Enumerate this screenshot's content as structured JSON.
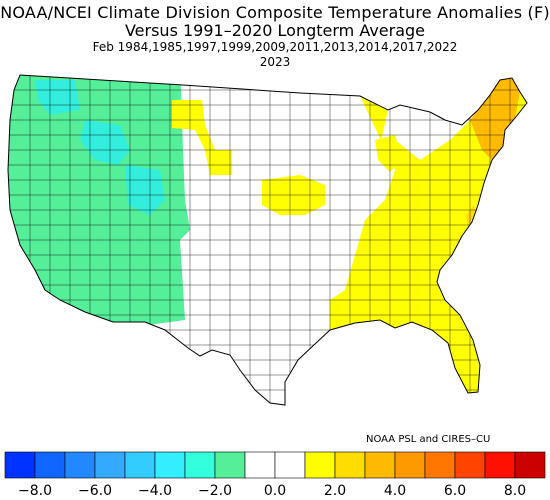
{
  "title": {
    "line1": "NOAA/NCEI Climate Division Composite Temperature Anomalies (F)",
    "line2": "Versus 1991–2020 Longterm Average",
    "line3": "Feb  1984,1985,1997,1999,2009,2011,2013,2014,2017,2022",
    "line4": "2023"
  },
  "credit": "NOAA PSL and CIRES–CU",
  "colorbar": {
    "colors": [
      "#0033ff",
      "#1166ff",
      "#2288ff",
      "#33aaff",
      "#33ccff",
      "#33eeff",
      "#33ffdd",
      "#55ee99",
      "#ffffff",
      "#ffffff",
      "#ffff00",
      "#ffdd00",
      "#ffbb00",
      "#ff9900",
      "#ff7700",
      "#ff4400",
      "#ff1100",
      "#cc0000"
    ],
    "tick_labels": [
      "−8.0",
      "−6.0",
      "−4.0",
      "−2.0",
      "0.0",
      "2.0",
      "4.0",
      "6.0",
      "8.0"
    ]
  },
  "map": {
    "regions": [
      {
        "name": "west-green",
        "color": "#55ee99"
      },
      {
        "name": "central-idaho-cyan",
        "color": "#33eedd"
      },
      {
        "name": "southeast-yellow",
        "color": "#ffff00"
      },
      {
        "name": "great-lakes-yellow",
        "color": "#ffff00"
      },
      {
        "name": "northern-plains-yellow",
        "color": "#ffff00"
      },
      {
        "name": "new-england-orange",
        "color": "#ffbb00"
      },
      {
        "name": "mid-atlantic-gold",
        "color": "#ffdd00"
      },
      {
        "name": "central-white",
        "color": "#ffffff"
      }
    ]
  }
}
